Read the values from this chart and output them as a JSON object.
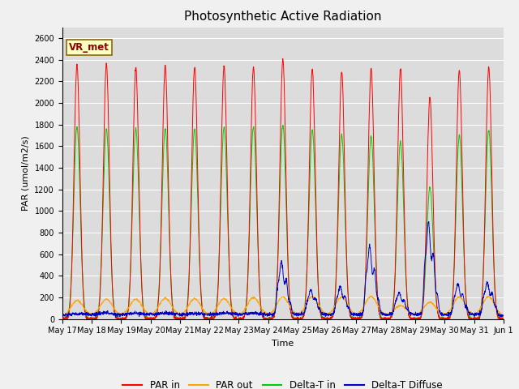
{
  "title": "Photosynthetic Active Radiation",
  "ylabel": "PAR (umol/m2/s)",
  "xlabel": "Time",
  "ylim": [
    0,
    2700
  ],
  "yticks": [
    0,
    200,
    400,
    600,
    800,
    1000,
    1200,
    1400,
    1600,
    1800,
    2000,
    2200,
    2400,
    2600
  ],
  "colors": {
    "par_in": "#ff0000",
    "par_out": "#ffa500",
    "delta_t_in": "#00cc00",
    "delta_t_diffuse": "#0000cc"
  },
  "legend_labels": [
    "PAR in",
    "PAR out",
    "Delta-T in",
    "Delta-T Diffuse"
  ],
  "annotation_text": "VR_met",
  "background_color": "#dcdcdc",
  "title_fontsize": 11,
  "label_fontsize": 8,
  "tick_fontsize": 7
}
